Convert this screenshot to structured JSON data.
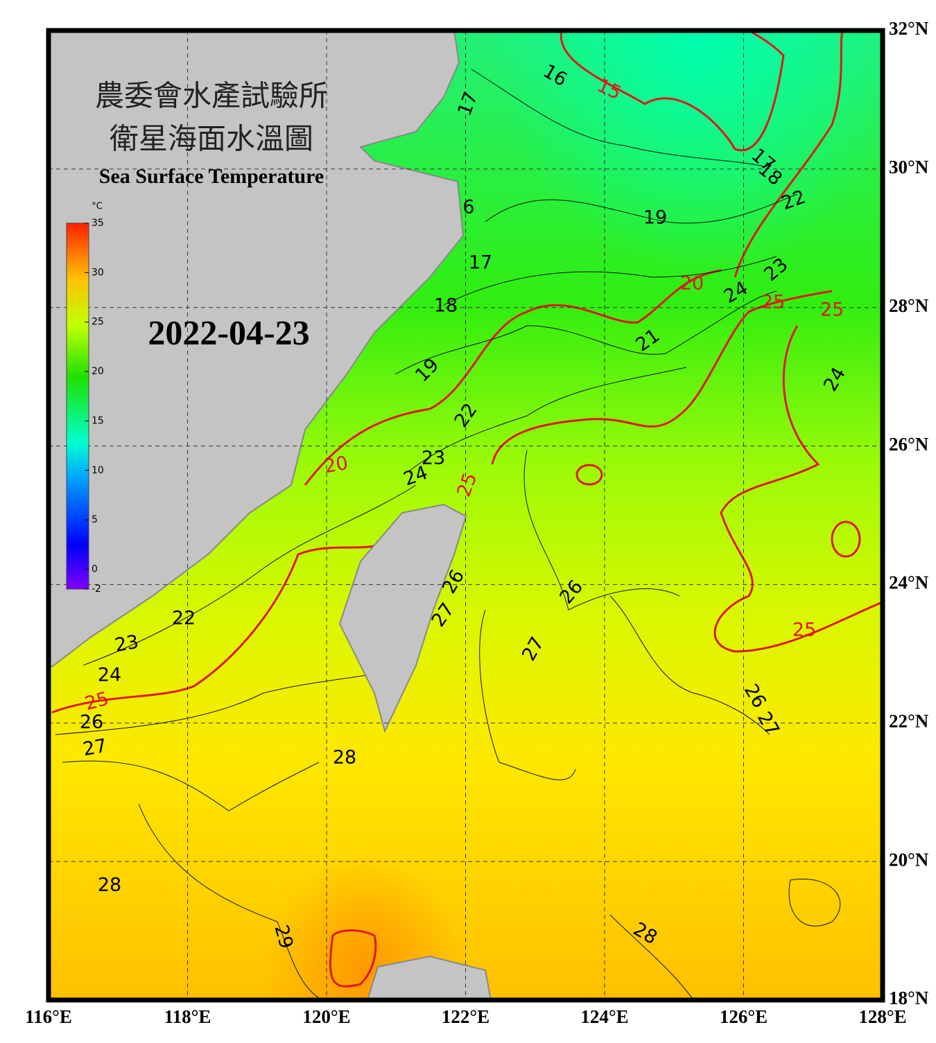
{
  "header": {
    "title_zh_1": "農委會水產試驗所",
    "title_zh_2": "衛星海面水溫圖",
    "title_en": "Sea Surface Temperature",
    "date": "2022-04-23"
  },
  "colorbar": {
    "unit": "°C",
    "range": [
      -2,
      35
    ],
    "ticks": [
      -2,
      0,
      5,
      10,
      15,
      20,
      25,
      30,
      35
    ]
  },
  "axes": {
    "lon_range": [
      116,
      128
    ],
    "lat_range": [
      18,
      32
    ],
    "lon_ticks": [
      {
        "value": 116,
        "label": "116°E"
      },
      {
        "value": 118,
        "label": "118°E"
      },
      {
        "value": 120,
        "label": "120°E"
      },
      {
        "value": 122,
        "label": "122°E"
      },
      {
        "value": 124,
        "label": "124°E"
      },
      {
        "value": 126,
        "label": "126°E"
      },
      {
        "value": 128,
        "label": "128°E"
      }
    ],
    "lat_ticks": [
      {
        "value": 18,
        "label": "18°N"
      },
      {
        "value": 20,
        "label": "20°N"
      },
      {
        "value": 22,
        "label": "22°N"
      },
      {
        "value": 24,
        "label": "24°N"
      },
      {
        "value": 26,
        "label": "26°N"
      },
      {
        "value": 28,
        "label": "28°N"
      },
      {
        "value": 30,
        "label": "30°N"
      },
      {
        "value": 32,
        "label": "32°N"
      }
    ]
  },
  "contour_labels": [
    "16",
    "15",
    "17",
    "17",
    "18",
    "6",
    "19",
    "22",
    "17",
    "23",
    "20",
    "24",
    "25",
    "25",
    "18",
    "21",
    "19",
    "24",
    "22",
    "23",
    "20",
    "24",
    "25",
    "26",
    "26",
    "27",
    "22",
    "25",
    "23",
    "27",
    "24",
    "26",
    "25",
    "27",
    "26",
    "27",
    "28",
    "28",
    "29",
    "28"
  ]
}
